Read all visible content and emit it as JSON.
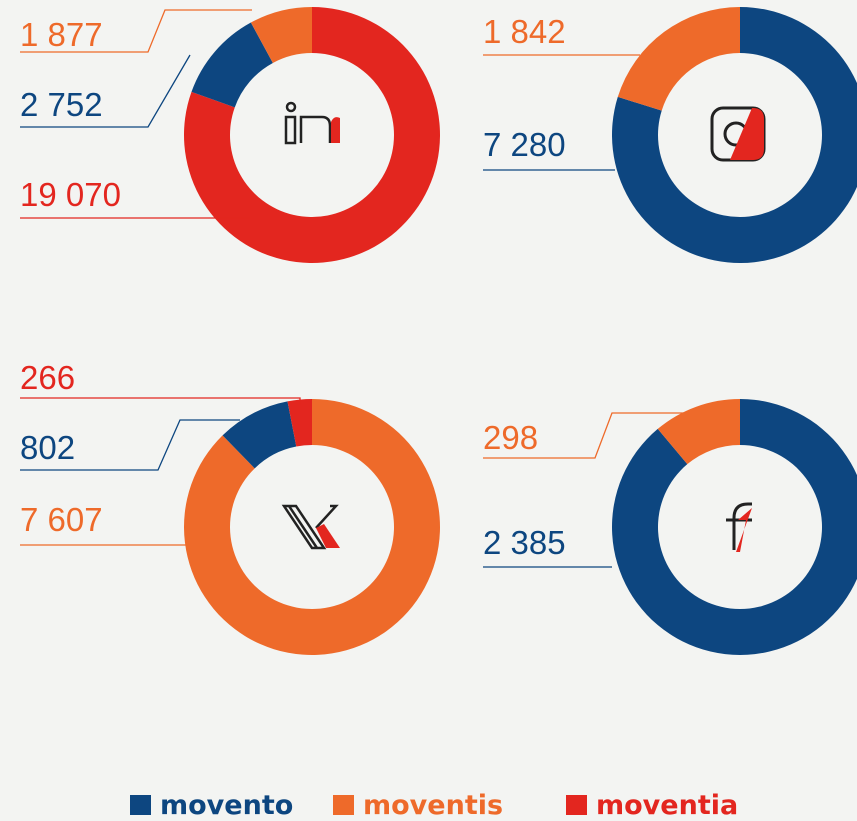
{
  "chart_data": [
    {
      "type": "pie",
      "values": [
        19070,
        2752,
        1877
      ],
      "value_labels": [
        "19 070",
        "2 752",
        "1 877"
      ],
      "colors": [
        "#e3261f",
        "#0d4680",
        "#ee6a2a"
      ]
    },
    {
      "type": "pie",
      "values": [
        7280,
        1842
      ],
      "value_labels": [
        "7 280",
        "1 842"
      ],
      "colors": [
        "#0d4680",
        "#ee6a2a"
      ]
    },
    {
      "type": "pie",
      "values": [
        7607,
        802,
        266
      ],
      "value_labels": [
        "7 607",
        "802",
        "266"
      ],
      "colors": [
        "#ee6a2a",
        "#0d4680",
        "#e3261f"
      ]
    },
    {
      "type": "pie",
      "values": [
        2385,
        298
      ],
      "value_labels": [
        "2 385",
        "298"
      ],
      "colors": [
        "#0d4680",
        "#ee6a2a"
      ]
    }
  ],
  "legend": {
    "names": [
      "movento",
      "moventis",
      "moventia"
    ],
    "colors": [
      "#0d4680",
      "#ee6a2a",
      "#e3261f"
    ]
  }
}
